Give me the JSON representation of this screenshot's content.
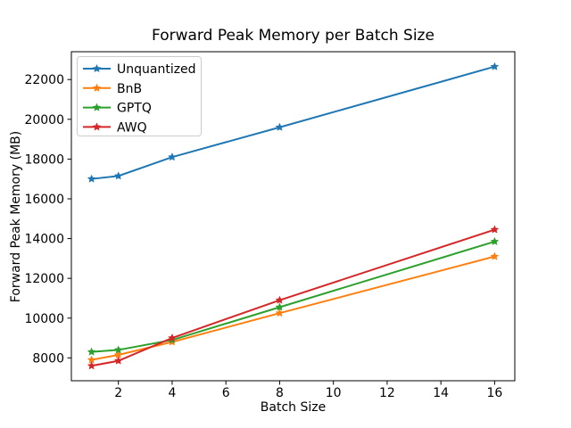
{
  "figure": {
    "background": "#ffffff",
    "spine_color": "#000000",
    "legend_border_color": "#cccccc"
  },
  "chart_data": {
    "type": "line",
    "title": "Forward Peak Memory per Batch Size",
    "xlabel": "Batch Size",
    "ylabel": "Forward Peak Memory (MB)",
    "x": [
      1,
      2,
      4,
      8,
      16
    ],
    "series": [
      {
        "name": "Unquantized",
        "color": "#1f77b4",
        "marker": "star",
        "values": [
          17000,
          17150,
          18100,
          19600,
          22650
        ]
      },
      {
        "name": "BnB",
        "color": "#ff7f0e",
        "marker": "star",
        "values": [
          7900,
          8150,
          8800,
          10250,
          13100
        ]
      },
      {
        "name": "GPTQ",
        "color": "#2ca02c",
        "marker": "star",
        "values": [
          8300,
          8400,
          8900,
          10550,
          13850
        ]
      },
      {
        "name": "AWQ",
        "color": "#d62728",
        "marker": "star",
        "values": [
          7600,
          7850,
          9000,
          10900,
          14450
        ]
      }
    ],
    "xticks": [
      2,
      4,
      6,
      8,
      10,
      12,
      14,
      16
    ],
    "yticks": [
      8000,
      10000,
      12000,
      14000,
      16000,
      18000,
      20000,
      22000
    ],
    "xlim": [
      0.25,
      16.75
    ],
    "ylim": [
      6850,
      23400
    ],
    "grid": false,
    "legend_position": "upper left"
  }
}
